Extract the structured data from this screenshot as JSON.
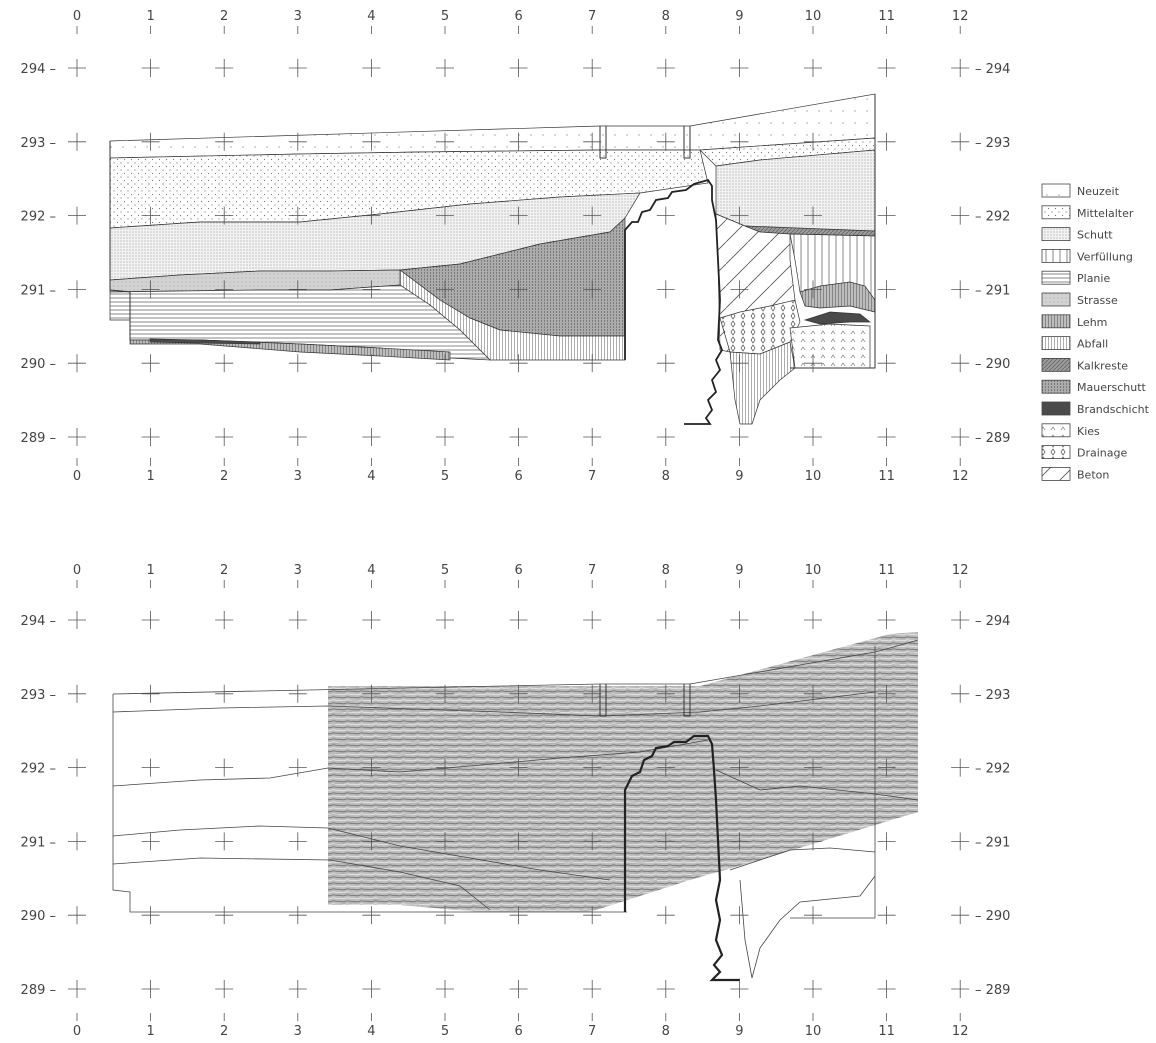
{
  "panels": [
    {
      "name": "top-section",
      "x_ticks": [
        "0",
        "1",
        "2",
        "3",
        "4",
        "5",
        "6",
        "7",
        "8",
        "9",
        "10",
        "11",
        "12"
      ],
      "y_ticks": [
        "294",
        "293",
        "292",
        "291",
        "290",
        "289"
      ]
    },
    {
      "name": "bottom-section",
      "x_ticks": [
        "0",
        "1",
        "2",
        "3",
        "4",
        "5",
        "6",
        "7",
        "8",
        "9",
        "10",
        "11",
        "12"
      ],
      "y_ticks": [
        "294",
        "293",
        "292",
        "291",
        "290",
        "289"
      ]
    }
  ],
  "legend": [
    {
      "label": "Neuzeit",
      "pattern": "pat-neuzeit"
    },
    {
      "label": "Mittelalter",
      "pattern": "pat-mittelalter"
    },
    {
      "label": "Schutt",
      "pattern": "pat-schutt"
    },
    {
      "label": "Verfüllung",
      "pattern": "pat-verfuellung"
    },
    {
      "label": "Planie",
      "pattern": "pat-planie"
    },
    {
      "label": "Strasse",
      "pattern": "pat-strasse"
    },
    {
      "label": "Lehm",
      "pattern": "pat-lehm"
    },
    {
      "label": "Abfall",
      "pattern": "pat-abfall"
    },
    {
      "label": "Kalkreste",
      "pattern": "pat-kalkreste"
    },
    {
      "label": "Mauerschutt",
      "pattern": "pat-mauerschutt"
    },
    {
      "label": "Brandschicht",
      "pattern": "pat-brand"
    },
    {
      "label": "Kies",
      "pattern": "pat-kies"
    },
    {
      "label": "Drainage",
      "pattern": "pat-drainage"
    },
    {
      "label": "Beton",
      "pattern": "pat-beton"
    }
  ]
}
